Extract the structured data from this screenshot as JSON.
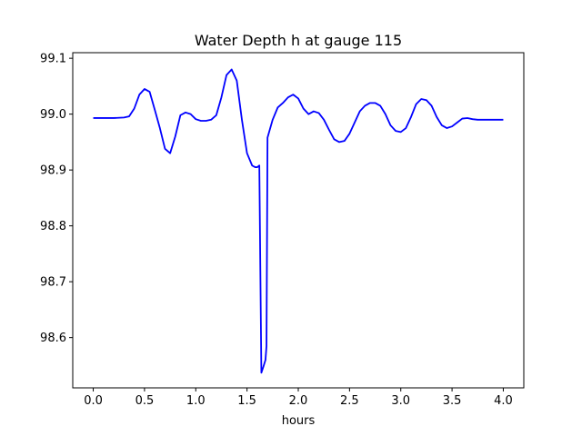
{
  "chart_data": {
    "type": "line",
    "title": "Water Depth h at gauge 115",
    "xlabel": "hours",
    "ylabel": "",
    "xlim": [
      -0.2,
      4.2
    ],
    "ylim": [
      98.51,
      99.11
    ],
    "xticks": [
      0.0,
      0.5,
      1.0,
      1.5,
      2.0,
      2.5,
      3.0,
      3.5,
      4.0
    ],
    "xtick_labels": [
      "0.0",
      "0.5",
      "1.0",
      "1.5",
      "2.0",
      "2.5",
      "3.0",
      "3.5",
      "4.0"
    ],
    "yticks": [
      98.6,
      98.7,
      98.8,
      98.9,
      99.0,
      99.1
    ],
    "ytick_labels": [
      "98.6",
      "98.7",
      "98.8",
      "98.9",
      "99.0",
      "99.1"
    ],
    "grid": false,
    "series": [
      {
        "color": "#0000ff",
        "x": [
          0.0,
          0.1,
          0.2,
          0.3,
          0.35,
          0.4,
          0.45,
          0.5,
          0.55,
          0.6,
          0.65,
          0.7,
          0.75,
          0.8,
          0.85,
          0.9,
          0.95,
          1.0,
          1.05,
          1.1,
          1.15,
          1.2,
          1.25,
          1.3,
          1.35,
          1.4,
          1.45,
          1.5,
          1.55,
          1.58,
          1.6,
          1.62,
          1.63,
          1.64,
          1.66,
          1.68,
          1.69,
          1.7,
          1.75,
          1.8,
          1.85,
          1.9,
          1.95,
          2.0,
          2.05,
          2.1,
          2.15,
          2.2,
          2.25,
          2.3,
          2.35,
          2.4,
          2.45,
          2.5,
          2.55,
          2.6,
          2.65,
          2.7,
          2.75,
          2.8,
          2.85,
          2.9,
          2.95,
          3.0,
          3.05,
          3.1,
          3.15,
          3.2,
          3.25,
          3.3,
          3.35,
          3.4,
          3.45,
          3.5,
          3.55,
          3.6,
          3.65,
          3.7,
          3.75,
          3.8,
          3.85,
          3.9,
          3.95,
          4.0
        ],
        "y": [
          98.993,
          98.993,
          98.993,
          98.994,
          98.996,
          99.01,
          99.035,
          99.045,
          99.04,
          99.008,
          98.975,
          98.938,
          98.93,
          98.96,
          98.998,
          99.003,
          99.0,
          98.991,
          98.988,
          98.988,
          98.99,
          98.998,
          99.03,
          99.07,
          99.08,
          99.06,
          98.99,
          98.93,
          98.908,
          98.905,
          98.905,
          98.908,
          98.72,
          98.537,
          98.548,
          98.56,
          98.585,
          98.958,
          98.99,
          99.012,
          99.02,
          99.03,
          99.035,
          99.028,
          99.01,
          99.0,
          99.005,
          99.002,
          98.99,
          98.972,
          98.955,
          98.95,
          98.952,
          98.965,
          98.985,
          99.005,
          99.015,
          99.02,
          99.02,
          99.015,
          99.0,
          98.98,
          98.97,
          98.968,
          98.975,
          98.995,
          99.018,
          99.027,
          99.025,
          99.015,
          98.995,
          98.98,
          98.975,
          98.978,
          98.985,
          98.992,
          98.993,
          98.991,
          98.99,
          98.99,
          98.99,
          98.99,
          98.99,
          98.99
        ]
      }
    ]
  }
}
